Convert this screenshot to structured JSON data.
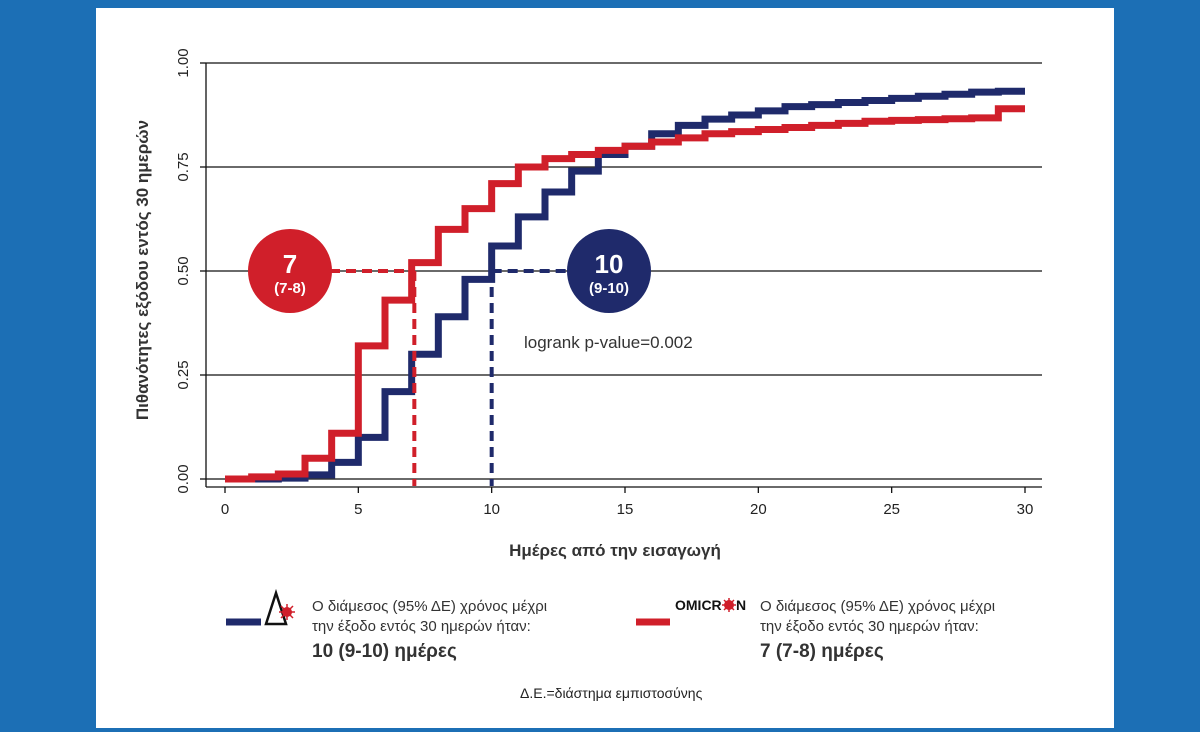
{
  "chart_data": {
    "type": "line",
    "xlabel": "Ημέρες από την εισαγωγή",
    "ylabel": "Πιθανότητες εξόδου εντός 30 ημερών",
    "xlim": [
      0,
      30
    ],
    "ylim": [
      0,
      1
    ],
    "x_ticks": [
      "0",
      "5",
      "10",
      "15",
      "20",
      "25",
      "30"
    ],
    "y_ticks": [
      "0.00",
      "0.25",
      "0.50",
      "0.75",
      "1.00"
    ],
    "grid": "horizontal",
    "step": true,
    "series": [
      {
        "name": "Delta",
        "color": "#1f2a6b",
        "x": [
          0,
          2,
          3,
          4,
          5,
          6,
          7,
          8,
          9,
          10,
          11,
          12,
          13,
          14,
          15,
          16,
          17,
          18,
          19,
          20,
          21,
          22,
          23,
          24,
          25,
          26,
          27,
          28,
          29,
          30
        ],
        "y": [
          0,
          0.002,
          0.01,
          0.04,
          0.1,
          0.21,
          0.3,
          0.39,
          0.48,
          0.56,
          0.63,
          0.69,
          0.74,
          0.78,
          0.8,
          0.83,
          0.85,
          0.865,
          0.875,
          0.885,
          0.895,
          0.9,
          0.905,
          0.91,
          0.915,
          0.92,
          0.925,
          0.93,
          0.932,
          0.932
        ]
      },
      {
        "name": "Omicron",
        "color": "#d01f2a",
        "x": [
          0,
          1,
          2,
          3,
          4,
          5,
          6,
          7,
          8,
          9,
          10,
          11,
          12,
          13,
          14,
          15,
          16,
          17,
          18,
          19,
          20,
          21,
          22,
          23,
          24,
          25,
          26,
          27,
          28,
          29,
          30
        ],
        "y": [
          0,
          0.005,
          0.012,
          0.05,
          0.11,
          0.32,
          0.43,
          0.52,
          0.6,
          0.65,
          0.71,
          0.75,
          0.77,
          0.78,
          0.79,
          0.8,
          0.81,
          0.82,
          0.83,
          0.835,
          0.84,
          0.845,
          0.85,
          0.855,
          0.86,
          0.862,
          0.864,
          0.866,
          0.868,
          0.89,
          0.89
        ]
      }
    ],
    "medians": [
      {
        "series": "Omicron",
        "x": 7.1,
        "y": 0.5,
        "label": "7",
        "ci": "(7-8)"
      },
      {
        "series": "Delta",
        "x": 10,
        "y": 0.5,
        "label": "10",
        "ci": "(9-10)"
      }
    ],
    "annotation": "logrank p-value=0.002"
  },
  "legend": {
    "delta": {
      "icon": "delta-virus-icon",
      "line1": "Ο διάμεσος (95% ΔΕ) χρόνος μέχρι",
      "line2": "την έξοδο εντός 30 ημερών ήταν:",
      "bold": "10 (9-10) ημέρες"
    },
    "omicron": {
      "icon": "omicron-logo-icon",
      "logo_text_1": "OMICR",
      "logo_text_2": "N",
      "line1": "Ο διάμεσος (95% ΔΕ) χρόνος μέχρι",
      "line2": "την έξοδο εντός 30 ημερών ήταν:",
      "bold": "7 (7-8) ημέρες"
    }
  },
  "footnote": "Δ.Ε.=διάστημα εμπιστοσύνης",
  "colors": {
    "background": "#1c6fb5",
    "delta": "#1f2a6b",
    "omicron": "#d01f2a"
  }
}
